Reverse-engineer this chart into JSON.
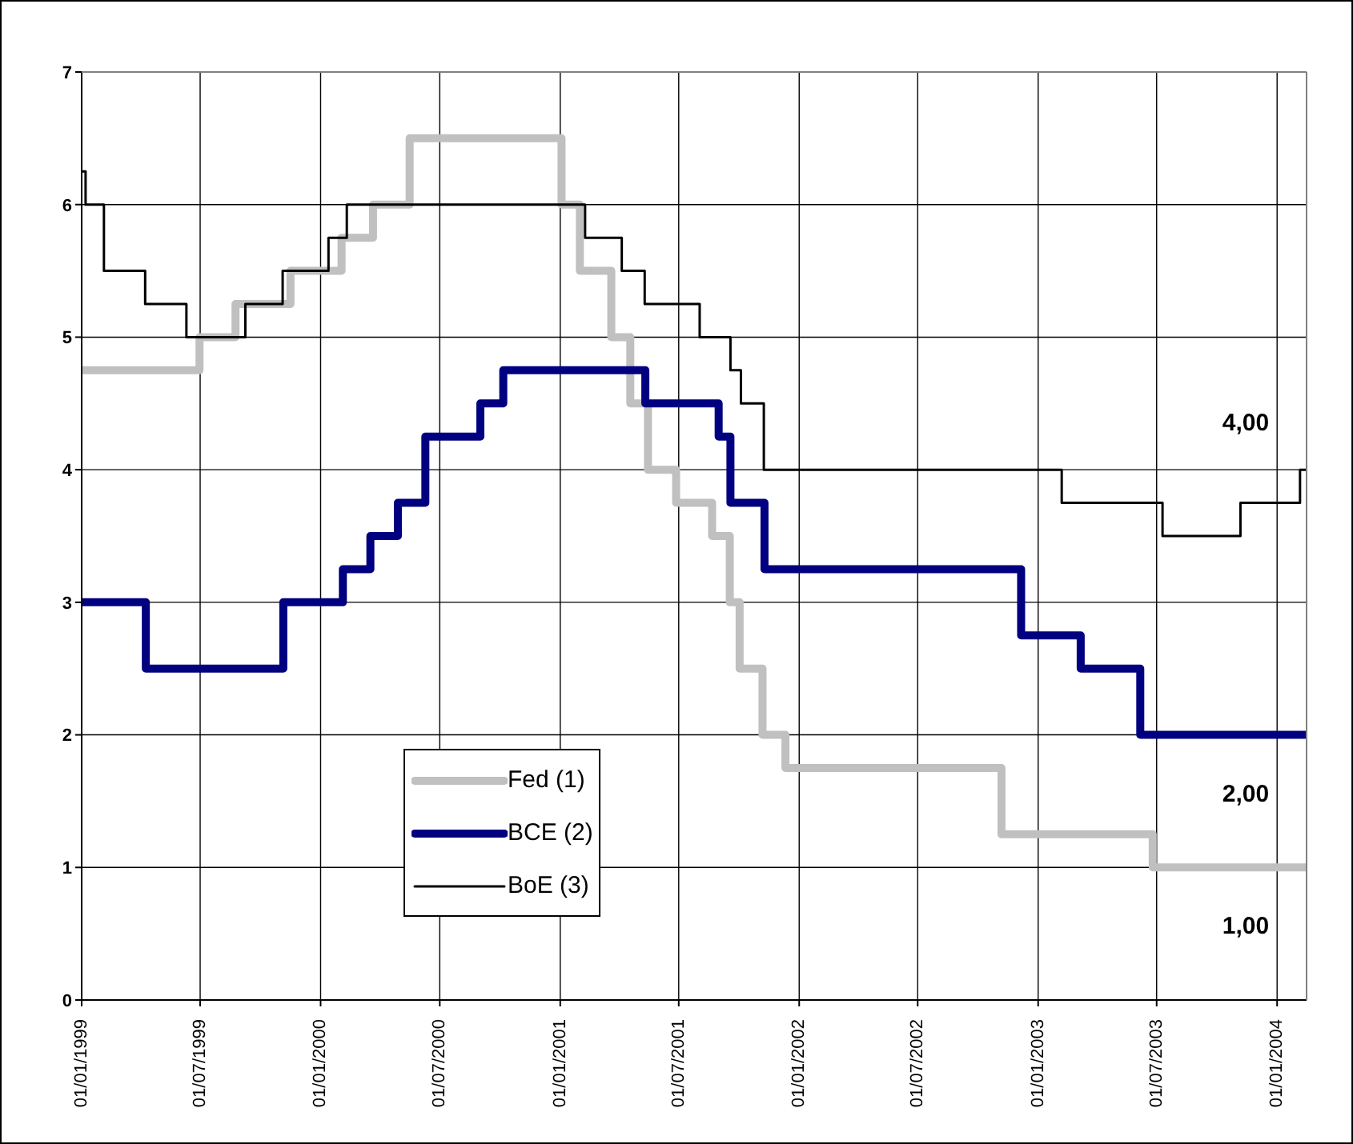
{
  "chart_data": {
    "type": "step",
    "xlim": [
      "1999-01-01",
      "2004-02-15"
    ],
    "xticks": [
      {
        "value": "1999-01-01",
        "label": "01/01/1999"
      },
      {
        "value": "1999-07-01",
        "label": "01/07/1999"
      },
      {
        "value": "2000-01-01",
        "label": "01/01/2000"
      },
      {
        "value": "2000-07-01",
        "label": "01/07/2000"
      },
      {
        "value": "2001-01-01",
        "label": "01/01/2001"
      },
      {
        "value": "2001-07-01",
        "label": "01/07/2001"
      },
      {
        "value": "2002-01-01",
        "label": "01/01/2002"
      },
      {
        "value": "2002-07-01",
        "label": "01/07/2002"
      },
      {
        "value": "2003-01-01",
        "label": "01/01/2003"
      },
      {
        "value": "2003-07-01",
        "label": "01/07/2003"
      },
      {
        "value": "2004-01-01",
        "label": "01/01/2004"
      }
    ],
    "ylim": [
      0,
      7
    ],
    "yticks": [
      0,
      1,
      2,
      3,
      4,
      5,
      6,
      7
    ],
    "grid": true,
    "legend": "bottom left",
    "marker": "none",
    "line_style": "solid",
    "series": [
      {
        "name": "Fed (1)",
        "color": "#c0c0c0",
        "x": [
          "1999-01-01",
          "1999-06-30",
          "1999-08-24",
          "1999-11-16",
          "2000-02-02",
          "2000-03-21",
          "2000-05-16",
          "2001-01-03",
          "2001-01-31",
          "2001-03-20",
          "2001-04-18",
          "2001-05-15",
          "2001-06-27",
          "2001-08-21",
          "2001-09-17",
          "2001-10-02",
          "2001-11-06",
          "2001-12-11",
          "2002-11-06",
          "2003-06-25",
          "2004-02-15"
        ],
        "values": [
          4.75,
          5,
          5.25,
          5.5,
          5.75,
          6,
          6.5,
          6,
          5.5,
          5,
          4.5,
          4,
          3.75,
          3.5,
          3,
          2.5,
          2,
          1.75,
          1.25,
          1,
          1
        ]
      },
      {
        "name": "BCE (2)",
        "color": "#000080",
        "x": [
          "1999-01-01",
          "1999-04-09",
          "1999-11-05",
          "2000-02-04",
          "2000-03-17",
          "2000-04-28",
          "2000-06-09",
          "2000-09-01",
          "2000-10-06",
          "2001-05-11",
          "2001-08-31",
          "2001-09-18",
          "2001-11-09",
          "2002-12-06",
          "2003-03-07",
          "2003-06-06",
          "2004-02-15"
        ],
        "values": [
          3,
          2.5,
          3,
          3.25,
          3.5,
          3.75,
          4.25,
          4.5,
          4.75,
          4.5,
          4.25,
          3.75,
          3.25,
          2.75,
          2.5,
          2,
          2
        ]
      },
      {
        "name": "BoE (3)",
        "color": "#000000",
        "x": [
          "1999-01-01",
          "1999-01-07",
          "1999-02-04",
          "1999-04-08",
          "1999-06-10",
          "1999-09-08",
          "1999-11-04",
          "2000-01-13",
          "2000-02-10",
          "2001-02-08",
          "2001-04-05",
          "2001-05-10",
          "2001-08-02",
          "2001-09-18",
          "2001-10-04",
          "2001-11-08",
          "2003-02-06",
          "2003-07-10",
          "2003-11-06",
          "2004-02-05",
          "2004-02-15"
        ],
        "values": [
          6.25,
          6,
          5.5,
          5.25,
          5,
          5.25,
          5.5,
          5.75,
          6,
          5.75,
          5.5,
          5.25,
          5,
          4.75,
          4.5,
          4,
          3.75,
          3.5,
          3.75,
          4,
          4
        ]
      }
    ],
    "annotations": [
      {
        "text": "4,00",
        "x": "2004-02-15",
        "y": 4
      },
      {
        "text": "2,00",
        "x": "2004-02-15",
        "y": 2
      },
      {
        "text": "1,00",
        "x": "2004-02-15",
        "y": 1
      }
    ]
  }
}
